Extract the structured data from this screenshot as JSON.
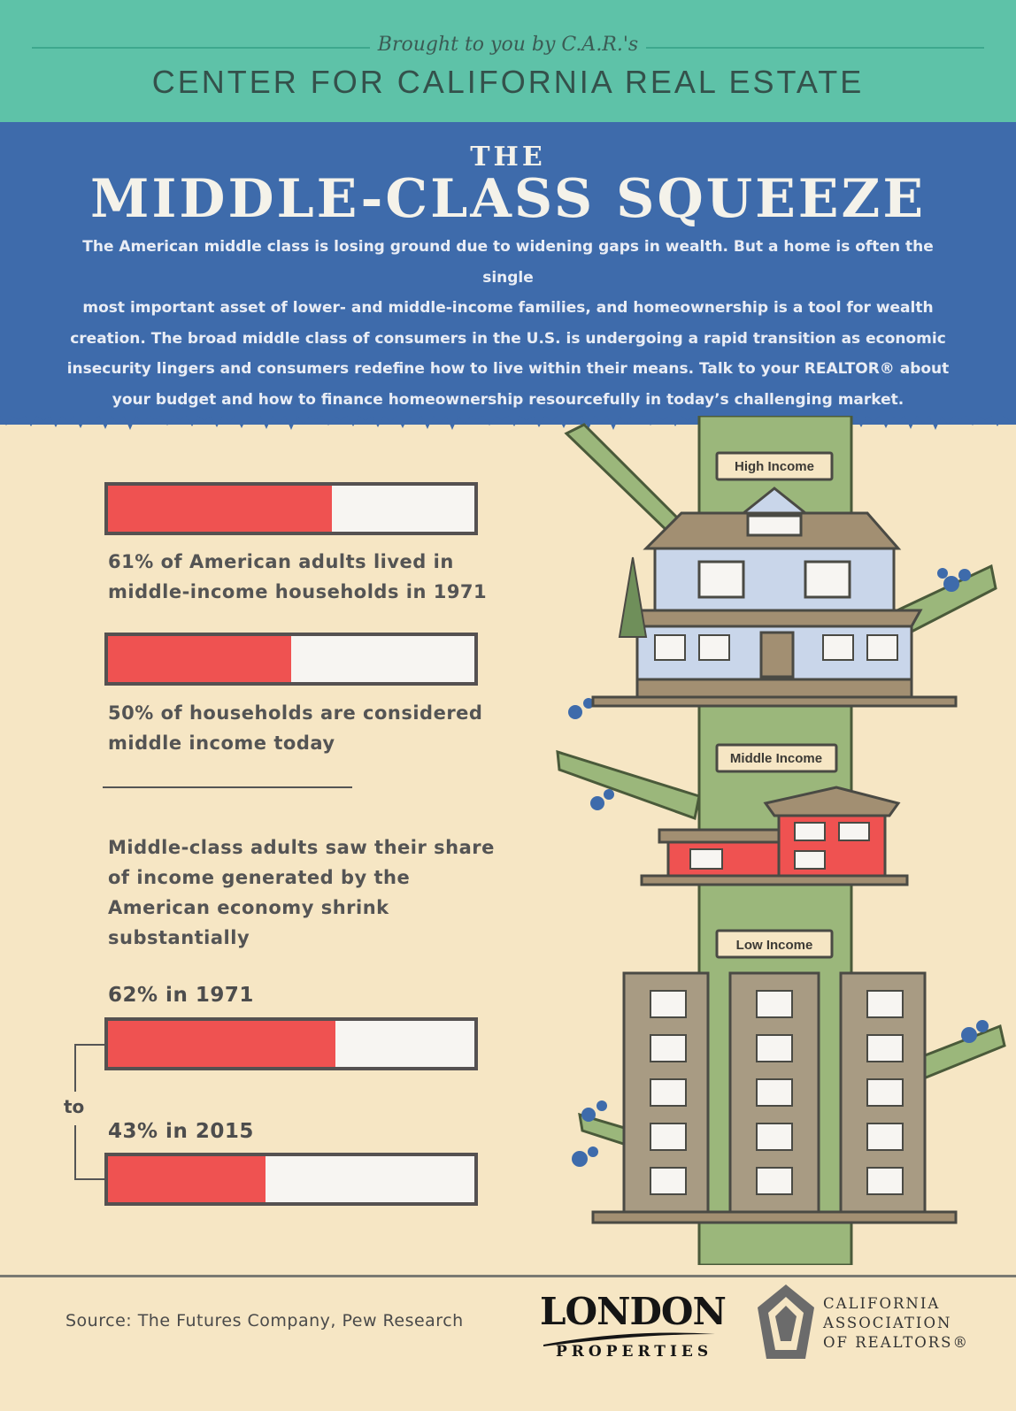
{
  "header": {
    "brought_by": "Brought to you by C.A.R.'s",
    "center_name": "CENTER FOR CALIFORNIA REAL ESTATE",
    "the": "THE",
    "title": "MIDDLE-CLASS SQUEEZE",
    "intro_lines": [
      "The American middle class is losing ground due to widening gaps in wealth. But a home is often the single",
      "most important asset of lower- and middle-income families, and homeownership is a tool for wealth",
      "creation. The broad middle class of consumers in the U.S. is undergoing a rapid transition as economic",
      "insecurity lingers and consumers redefine how to live within their means. Talk to your REALTOR® about",
      "your budget and how to finance homeownership resourcefully in today’s challenging market."
    ]
  },
  "stats": {
    "stat1": {
      "value_fraction": 0.61,
      "lines": [
        "61% of American adults lived in",
        "middle-income households in 1971"
      ]
    },
    "stat2": {
      "value_fraction": 0.5,
      "lines": [
        "50% of households are considered",
        "middle income today"
      ]
    },
    "share_text": [
      "Middle-class adults saw their share",
      "of income generated by the",
      "American economy shrink",
      "substantially"
    ],
    "share_1971": {
      "value_fraction": 0.62,
      "label": "62% in 1971"
    },
    "connector": "to",
    "share_2015": {
      "value_fraction": 0.43,
      "label": "43% in 2015"
    }
  },
  "tree": {
    "high": "High Income",
    "middle": "Middle Income",
    "low": "Low Income"
  },
  "footer": {
    "source": "Source: The Futures Company, Pew Research",
    "london": "LONDON",
    "properties": "PROPERTIES",
    "car_lines": [
      "CALIFORNIA",
      "ASSOCIATION",
      "OF REALTORS®"
    ]
  },
  "colors": {
    "green": "#5ec2a8",
    "blue": "#3e6bab",
    "cream": "#f6e6c4",
    "bar_red": "#ef5251",
    "tree_green": "#9bb77b"
  }
}
